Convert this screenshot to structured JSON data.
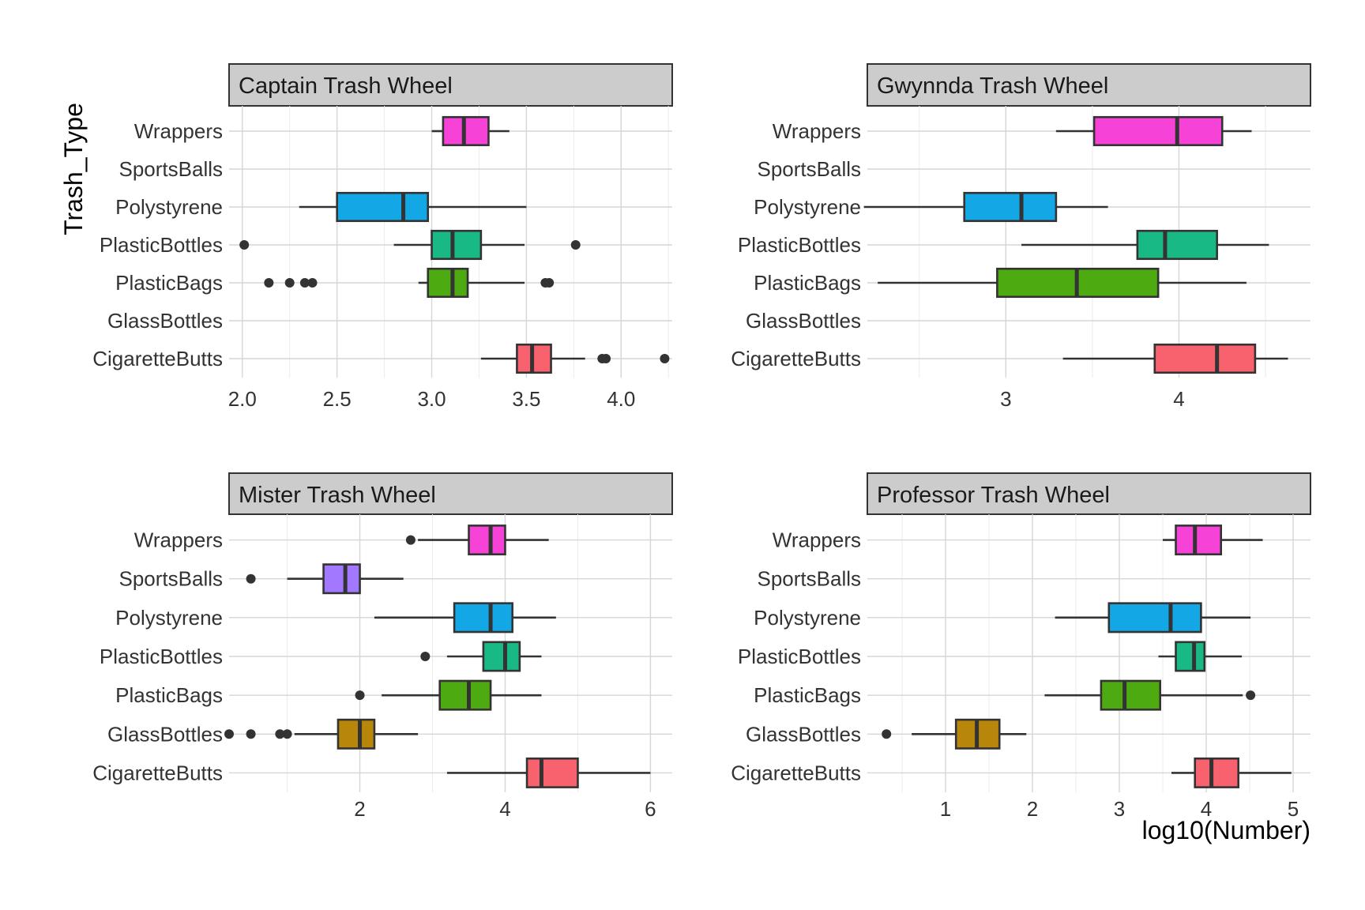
{
  "chart_data": {
    "type": "boxplot",
    "orientation": "horizontal",
    "facet_layout": "2x2",
    "xlabel": "log10(Number)",
    "ylabel": "Trash_Type",
    "categories": [
      "CigaretteButts",
      "GlassBottles",
      "PlasticBags",
      "PlasticBottles",
      "Polystyrene",
      "SportsBalls",
      "Wrappers"
    ],
    "colors": {
      "CigaretteButts": "#F8616E",
      "GlassBottles": "#B8860B",
      "PlasticBags": "#4DAA10",
      "PlasticBottles": "#19B986",
      "Polystyrene": "#13A7E6",
      "SportsBalls": "#A178FF",
      "Wrappers": "#F742D8"
    },
    "grid": true,
    "legend": "none",
    "panels": [
      {
        "title": "Captain Trash Wheel",
        "xlim": [
          1.93,
          4.27
        ],
        "xticks": [
          2.0,
          2.5,
          3.0,
          3.5,
          4.0
        ],
        "xtick_labels": [
          "2.0",
          "2.5",
          "3.0",
          "3.5",
          "4.0"
        ],
        "boxes": [
          {
            "category": "Wrappers",
            "whisker_low": 3.0,
            "q1": 3.06,
            "median": 3.17,
            "q3": 3.3,
            "whisker_high": 3.41,
            "outliers": []
          },
          {
            "category": "Polystyrene",
            "whisker_low": 2.3,
            "q1": 2.5,
            "median": 2.85,
            "q3": 2.98,
            "whisker_high": 3.5,
            "outliers": []
          },
          {
            "category": "PlasticBottles",
            "whisker_low": 2.8,
            "q1": 3.0,
            "median": 3.11,
            "q3": 3.26,
            "whisker_high": 3.49,
            "outliers": [
              2.01,
              3.76
            ]
          },
          {
            "category": "PlasticBags",
            "whisker_low": 2.93,
            "q1": 2.98,
            "median": 3.11,
            "q3": 3.19,
            "whisker_high": 3.49,
            "outliers": [
              2.14,
              2.25,
              2.33,
              2.37,
              3.6,
              3.62
            ]
          },
          {
            "category": "CigaretteButts",
            "whisker_low": 3.26,
            "q1": 3.45,
            "median": 3.53,
            "q3": 3.63,
            "whisker_high": 3.81,
            "outliers": [
              3.9,
              3.92,
              4.23
            ]
          }
        ]
      },
      {
        "title": "Gwynnda Trash Wheel",
        "xlim": [
          2.2,
          4.76
        ],
        "xticks": [
          3,
          4
        ],
        "xtick_labels": [
          "3",
          "4"
        ],
        "boxes": [
          {
            "category": "Wrappers",
            "whisker_low": 3.29,
            "q1": 3.51,
            "median": 3.99,
            "q3": 4.25,
            "whisker_high": 4.42,
            "outliers": []
          },
          {
            "category": "Polystyrene",
            "whisker_low": 2.18,
            "q1": 2.76,
            "median": 3.09,
            "q3": 3.29,
            "whisker_high": 3.59,
            "outliers": []
          },
          {
            "category": "PlasticBottles",
            "whisker_low": 3.09,
            "q1": 3.76,
            "median": 3.92,
            "q3": 4.22,
            "whisker_high": 4.52,
            "outliers": []
          },
          {
            "category": "PlasticBags",
            "whisker_low": 2.26,
            "q1": 2.95,
            "median": 3.41,
            "q3": 3.88,
            "whisker_high": 4.39,
            "outliers": []
          },
          {
            "category": "CigaretteButts",
            "whisker_low": 3.33,
            "q1": 3.86,
            "median": 4.22,
            "q3": 4.44,
            "whisker_high": 4.63,
            "outliers": []
          }
        ]
      },
      {
        "title": "Mister Trash Wheel",
        "xlim": [
          0.2,
          6.3
        ],
        "xticks": [
          2,
          4,
          6
        ],
        "xtick_labels": [
          "2",
          "4",
          "6"
        ],
        "boxes": [
          {
            "category": "Wrappers",
            "whisker_low": 2.8,
            "q1": 3.5,
            "median": 3.8,
            "q3": 4.0,
            "whisker_high": 4.6,
            "outliers": [
              2.7
            ]
          },
          {
            "category": "SportsBalls",
            "whisker_low": 1.0,
            "q1": 1.5,
            "median": 1.8,
            "q3": 2.0,
            "whisker_high": 2.6,
            "outliers": [
              0.5
            ]
          },
          {
            "category": "Polystyrene",
            "whisker_low": 2.2,
            "q1": 3.3,
            "median": 3.8,
            "q3": 4.1,
            "whisker_high": 4.7,
            "outliers": []
          },
          {
            "category": "PlasticBottles",
            "whisker_low": 3.2,
            "q1": 3.7,
            "median": 4.0,
            "q3": 4.2,
            "whisker_high": 4.5,
            "outliers": [
              2.9
            ]
          },
          {
            "category": "PlasticBags",
            "whisker_low": 2.3,
            "q1": 3.1,
            "median": 3.5,
            "q3": 3.8,
            "whisker_high": 4.5,
            "outliers": [
              2.0
            ]
          },
          {
            "category": "GlassBottles",
            "whisker_low": 1.1,
            "q1": 1.7,
            "median": 2.0,
            "q3": 2.2,
            "whisker_high": 2.8,
            "outliers": [
              0.2,
              0.5,
              0.9,
              1.0
            ]
          },
          {
            "category": "CigaretteButts",
            "whisker_low": 3.2,
            "q1": 4.3,
            "median": 4.5,
            "q3": 5.0,
            "whisker_high": 6.0,
            "outliers": []
          }
        ]
      },
      {
        "title": "Professor Trash Wheel",
        "xlim": [
          0.1,
          5.2
        ],
        "xticks": [
          1,
          2,
          3,
          4,
          5
        ],
        "xtick_labels": [
          "1",
          "2",
          "3",
          "4",
          "5"
        ],
        "boxes": [
          {
            "category": "Wrappers",
            "whisker_low": 3.5,
            "q1": 3.65,
            "median": 3.87,
            "q3": 4.17,
            "whisker_high": 4.65,
            "outliers": []
          },
          {
            "category": "Polystyrene",
            "whisker_low": 2.26,
            "q1": 2.88,
            "median": 3.59,
            "q3": 3.94,
            "whisker_high": 4.51,
            "outliers": []
          },
          {
            "category": "PlasticBottles",
            "whisker_low": 3.45,
            "q1": 3.65,
            "median": 3.86,
            "q3": 3.98,
            "whisker_high": 4.41,
            "outliers": []
          },
          {
            "category": "PlasticBags",
            "whisker_low": 2.14,
            "q1": 2.79,
            "median": 3.06,
            "q3": 3.47,
            "whisker_high": 4.42,
            "outliers": [
              4.51
            ]
          },
          {
            "category": "GlassBottles",
            "whisker_low": 0.61,
            "q1": 1.12,
            "median": 1.36,
            "q3": 1.62,
            "whisker_high": 1.93,
            "outliers": [
              0.32
            ]
          },
          {
            "category": "CigaretteButts",
            "whisker_low": 3.6,
            "q1": 3.87,
            "median": 4.06,
            "q3": 4.37,
            "whisker_high": 4.98,
            "outliers": []
          }
        ]
      }
    ]
  }
}
